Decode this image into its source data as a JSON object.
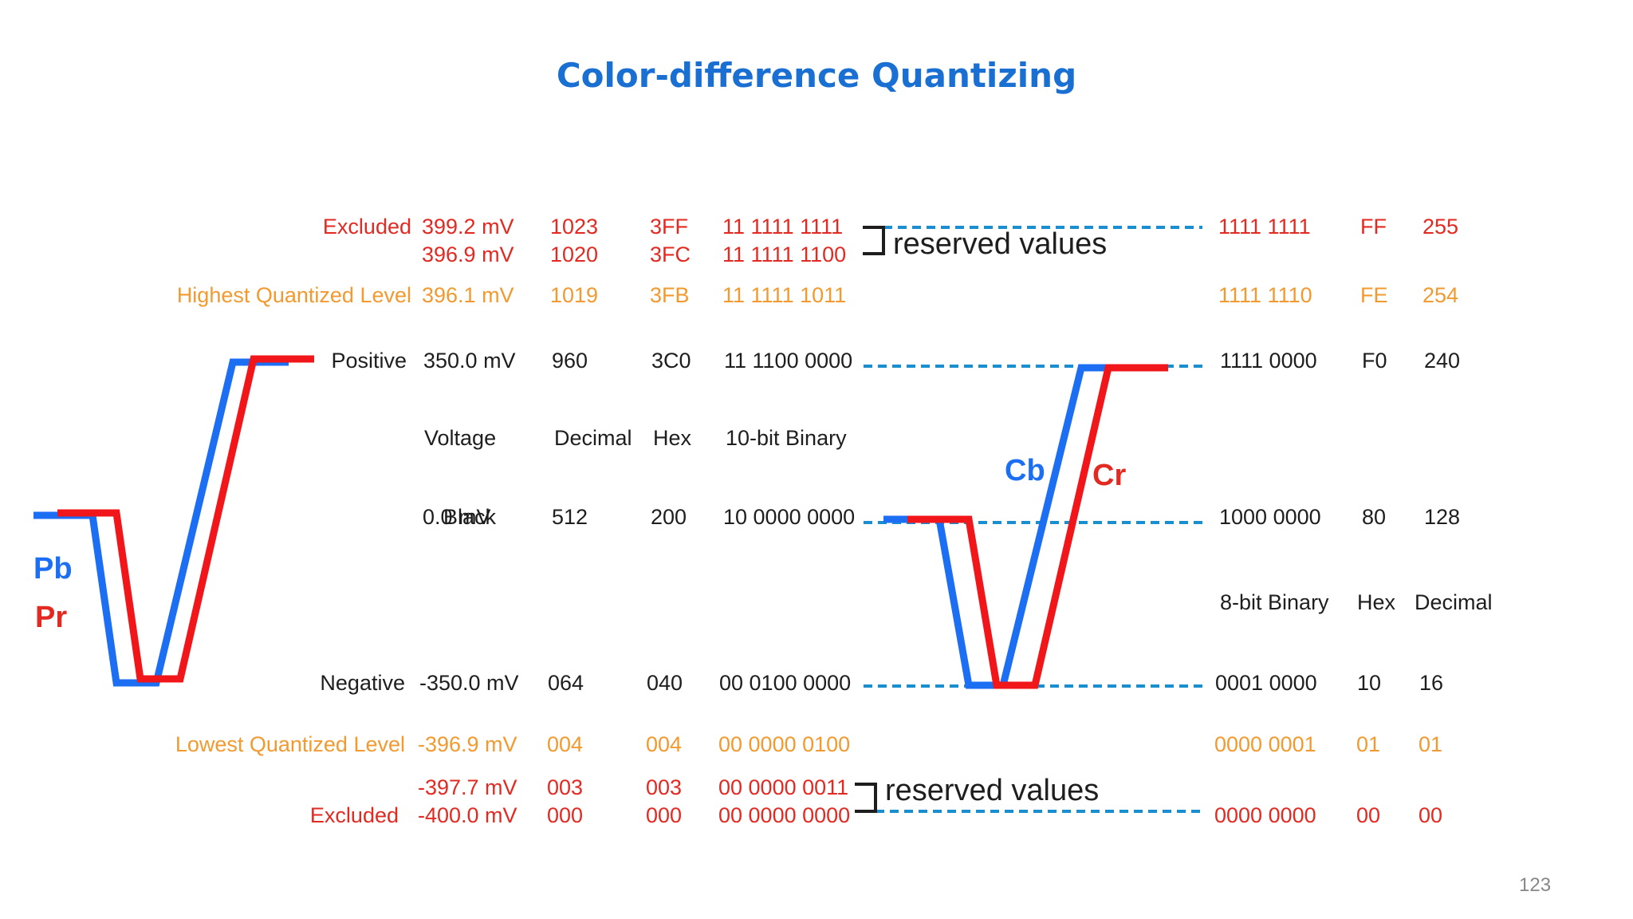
{
  "title": "Color-difference Quantizing",
  "page_number": "123",
  "colors": {
    "title": "#1a6fd3",
    "excluded": "#e32a22",
    "quantized_limit": "#f29a30",
    "text": "#1e1e1e",
    "pb_cb": "#1c6ef2",
    "pr_cr": "#f0161a",
    "dashed": "#1a8fd0"
  },
  "reserved_label": "reserved values",
  "headers_10bit": {
    "voltage": "Voltage",
    "decimal": "Decimal",
    "hex": "Hex",
    "binary": "10-bit Binary"
  },
  "headers_8bit": {
    "binary": "8-bit Binary",
    "hex": "Hex",
    "decimal": "Decimal"
  },
  "waves": {
    "left_top": "Pb",
    "left_bottom": "Pr",
    "right_left": "Cb",
    "right_right": "Cr"
  },
  "rows": {
    "excl_top_1": {
      "label": "Excluded",
      "voltage": "399.2 mV",
      "decimal": "1023",
      "hex": "3FF",
      "binary10": "11 1111 1111",
      "binary8": "1111 1111",
      "hex8": "FF",
      "decimal8": "255"
    },
    "excl_top_2": {
      "voltage": "396.9 mV",
      "decimal": "1020",
      "hex": "3FC",
      "binary10": "11 1111 1100"
    },
    "highest": {
      "label": "Highest Quantized Level",
      "voltage": "396.1 mV",
      "decimal": "1019",
      "hex": "3FB",
      "binary10": "11 1111 1011",
      "binary8": "1111 1110",
      "hex8": "FE",
      "decimal8": "254"
    },
    "positive": {
      "label": "Positive",
      "voltage": "350.0 mV",
      "decimal": "960",
      "hex": "3C0",
      "binary10": "11 1100 0000",
      "binary8": "1111 0000",
      "hex8": "F0",
      "decimal8": "240"
    },
    "black": {
      "label": "Black",
      "voltage": "0.0 mV",
      "decimal": "512",
      "hex": "200",
      "binary10": "10 0000 0000",
      "binary8": "1000 0000",
      "hex8": "80",
      "decimal8": "128"
    },
    "negative": {
      "label": "Negative",
      "voltage": "-350.0 mV",
      "decimal": "064",
      "hex": "040",
      "binary10": "00 0100 0000",
      "binary8": "0001 0000",
      "hex8": "10",
      "decimal8": "16"
    },
    "lowest": {
      "label": "Lowest Quantized Level",
      "voltage": "-396.9 mV",
      "decimal": "004",
      "hex": "004",
      "binary10": "00 0000 0100",
      "binary8": "0000 0001",
      "hex8": "01",
      "decimal8": "01"
    },
    "excl_bot_1": {
      "voltage": "-397.7 mV",
      "decimal": "003",
      "hex": "003",
      "binary10": "00 0000 0011"
    },
    "excl_bot_2": {
      "label": "Excluded",
      "voltage": "-400.0 mV",
      "decimal": "000",
      "hex": "000",
      "binary10": "00 0000 0000",
      "binary8": "0000 0000",
      "hex8": "00",
      "decimal8": "00"
    }
  }
}
